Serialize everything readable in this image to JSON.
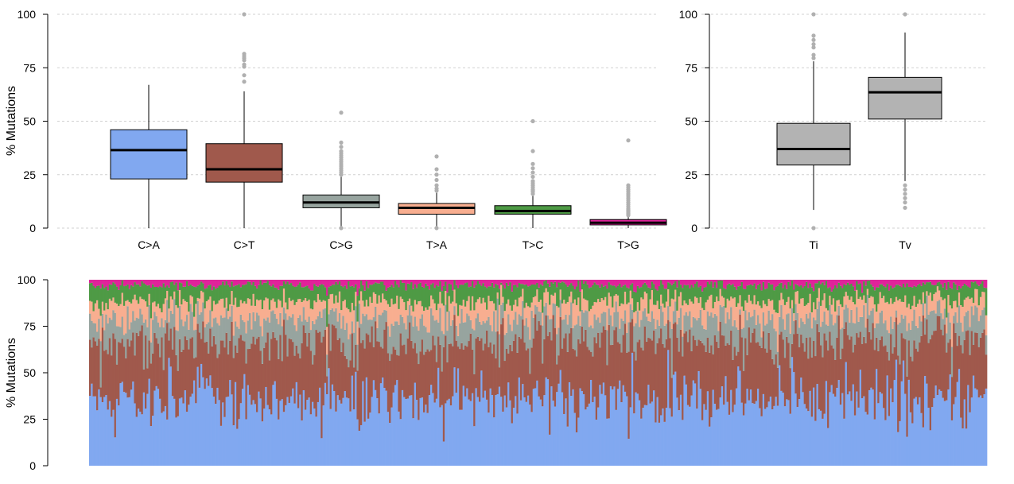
{
  "colors": {
    "C>A": "#81A8F0",
    "C>T": "#A0594C",
    "C>G": "#97A49F",
    "T>A": "#F8AE90",
    "T>C": "#4E9A45",
    "T>G": "#E0239A",
    "Ti": "#B3B3B3",
    "Tv": "#B3B3B3",
    "outlier": "#B0B0B0",
    "grid": "#D0D0D0",
    "axis": "#000000"
  },
  "chart_data": [
    {
      "type": "boxplot",
      "ylabel": "% Mutations",
      "ylim": [
        0,
        100
      ],
      "yticks": [
        0,
        25,
        50,
        75,
        100
      ],
      "grid": "dashed",
      "categories": [
        "C>A",
        "C>T",
        "C>G",
        "T>A",
        "T>C",
        "T>G"
      ],
      "boxes": [
        {
          "name": "C>A",
          "min": 0,
          "q1": 23,
          "median": 36.5,
          "q3": 46,
          "max": 67,
          "outliers": []
        },
        {
          "name": "C>T",
          "min": 0,
          "q1": 21.5,
          "median": 27.5,
          "q3": 39.5,
          "max": 64,
          "outliers": [
            68.5,
            71.5,
            75.5,
            76.5,
            78.5,
            79.5,
            80.5,
            81.5,
            100
          ]
        },
        {
          "name": "C>G",
          "min": 0,
          "q1": 9.5,
          "median": 12,
          "q3": 15.5,
          "max": 24,
          "outliers": [
            0,
            25,
            26,
            27,
            28,
            29,
            30,
            31,
            32,
            33,
            34,
            35,
            36,
            38,
            40,
            54
          ]
        },
        {
          "name": "T>A",
          "min": 0,
          "q1": 6.5,
          "median": 9.5,
          "q3": 11.5,
          "max": 16.5,
          "outliers": [
            0,
            17.5,
            18.5,
            20,
            22.5,
            25,
            27.5,
            33.5
          ]
        },
        {
          "name": "T>C",
          "min": 0,
          "q1": 6.5,
          "median": 8,
          "q3": 10.5,
          "max": 15,
          "outliers": [
            16,
            17,
            17.5,
            18,
            19,
            20,
            21,
            22,
            24,
            26,
            28,
            30,
            36,
            50
          ]
        },
        {
          "name": "T>G",
          "min": 0,
          "q1": 1.5,
          "median": 2.5,
          "q3": 4,
          "max": 5.5,
          "outliers": [
            6,
            6.5,
            7,
            7.5,
            8,
            8.5,
            9,
            10,
            11,
            12,
            13,
            14,
            15,
            16,
            17,
            18,
            19,
            20,
            41
          ]
        }
      ]
    },
    {
      "type": "boxplot",
      "ylim": [
        0,
        100
      ],
      "yticks": [
        0,
        25,
        50,
        75,
        100
      ],
      "grid": "dashed",
      "categories": [
        "Ti",
        "Tv"
      ],
      "boxes": [
        {
          "name": "Ti",
          "min": 8.5,
          "q1": 29.5,
          "median": 37,
          "q3": 49,
          "max": 78,
          "outliers": [
            0,
            79.5,
            81,
            84.5,
            86,
            88,
            90,
            100
          ]
        },
        {
          "name": "Tv",
          "min": 22,
          "q1": 51,
          "median": 63.5,
          "q3": 70.5,
          "max": 91.5,
          "outliers": [
            9.5,
            12,
            14,
            16,
            18,
            20,
            100
          ]
        }
      ]
    },
    {
      "type": "bar",
      "stacked": true,
      "ylabel": "% Mutations",
      "ylim": [
        0,
        100
      ],
      "yticks": [
        0,
        25,
        50,
        75,
        100
      ],
      "series_order": [
        "C>A",
        "C>T",
        "C>G",
        "T>A",
        "T>C",
        "T>G"
      ],
      "sample_count": 500,
      "series_means": [
        {
          "name": "C>A",
          "value": 36
        },
        {
          "name": "C>T",
          "value": 30
        },
        {
          "name": "C>G",
          "value": 13
        },
        {
          "name": "T>A",
          "value": 9.5
        },
        {
          "name": "T>C",
          "value": 8.5
        },
        {
          "name": "T>G",
          "value": 3
        }
      ]
    }
  ]
}
